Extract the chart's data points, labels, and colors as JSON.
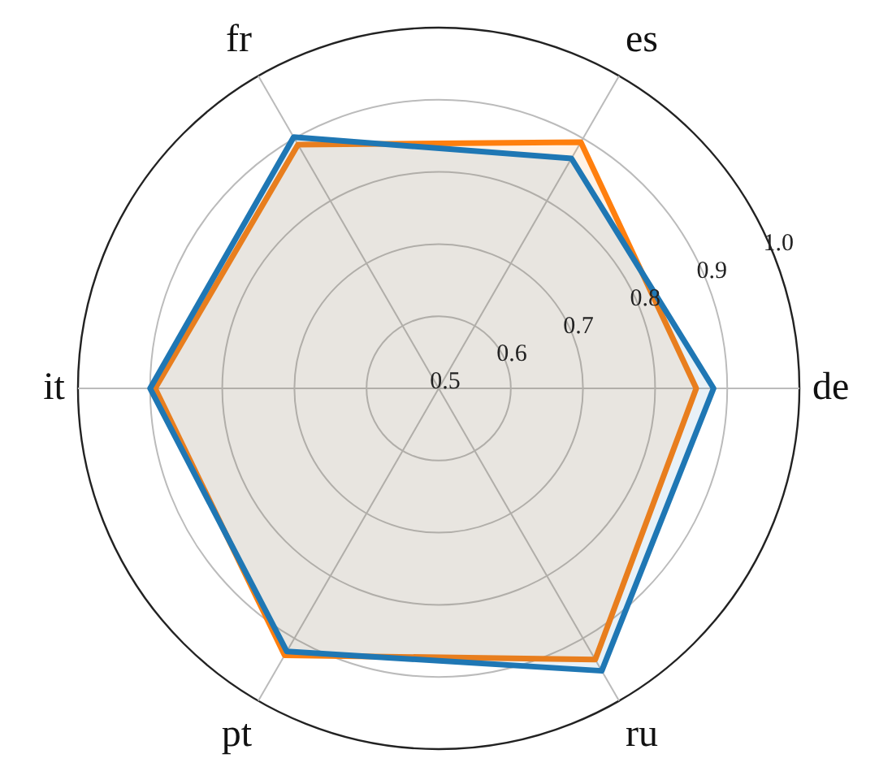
{
  "chart_data": {
    "type": "radar",
    "categories": [
      "es",
      "de",
      "ru",
      "pt",
      "it",
      "fr"
    ],
    "series": [
      {
        "color": "#1f77b4",
        "values": [
          0.868,
          0.881,
          0.952,
          0.921,
          0.9,
          0.902
        ]
      },
      {
        "color": "#ff7f0e",
        "values": [
          0.894,
          0.857,
          0.934,
          0.927,
          0.893,
          0.89
        ]
      }
    ],
    "ylim": [
      0.5,
      1.0
    ],
    "yticks": [
      0.5,
      0.6,
      0.7,
      0.8,
      0.9,
      {
        "value": 1.0,
        "label": "1.0"
      }
    ],
    "grid": true,
    "marker": "none",
    "line_style": "solid"
  }
}
